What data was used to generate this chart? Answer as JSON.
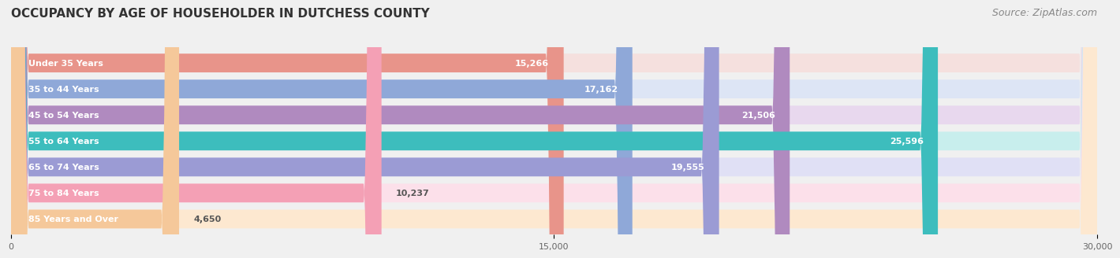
{
  "title": "OCCUPANCY BY AGE OF HOUSEHOLDER IN DUTCHESS COUNTY",
  "source": "Source: ZipAtlas.com",
  "categories": [
    "Under 35 Years",
    "35 to 44 Years",
    "45 to 54 Years",
    "55 to 64 Years",
    "65 to 74 Years",
    "75 to 84 Years",
    "85 Years and Over"
  ],
  "values": [
    15266,
    17162,
    21506,
    25596,
    19555,
    10237,
    4650
  ],
  "bar_colors": [
    "#e8948a",
    "#8fa8d8",
    "#b08abf",
    "#3dbdbd",
    "#9b9bd4",
    "#f4a0b5",
    "#f5c89a"
  ],
  "bar_bg_colors": [
    "#f5e0de",
    "#dde5f5",
    "#e8d8ee",
    "#c8eeed",
    "#e0e0f5",
    "#fce0ea",
    "#fde8d0"
  ],
  "xlim": [
    0,
    30000
  ],
  "xticks": [
    0,
    15000,
    30000
  ],
  "xtick_labels": [
    "0",
    "15,000",
    "30,000"
  ],
  "title_fontsize": 11,
  "source_fontsize": 9,
  "label_fontsize": 8,
  "value_fontsize": 8,
  "background_color": "#f0f0f0",
  "bar_bg_alpha": 1.0
}
